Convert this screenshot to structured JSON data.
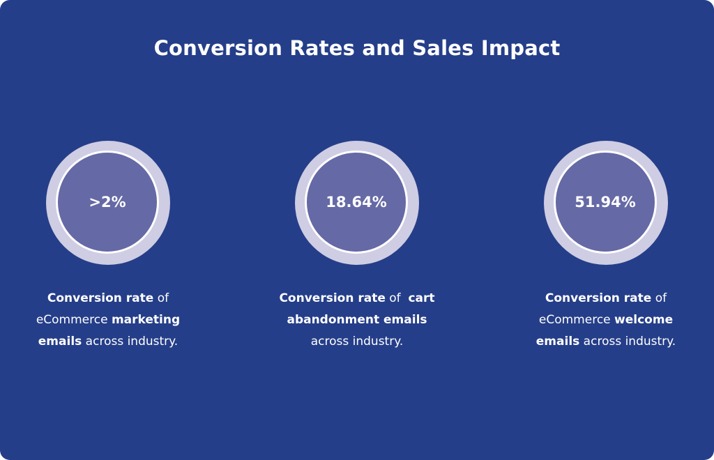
{
  "title": "Conversion Rates and Sales Impact",
  "colors": {
    "background": "#253e89",
    "ring_outer": "#cfcde3",
    "ring_inner": "#6569a5",
    "text": "#ffffff"
  },
  "stats": [
    {
      "value": ">2%",
      "lines": [
        {
          "bold": "Conversion rate",
          "rest": " of"
        },
        {
          "pre": "eCommerce ",
          "bold": "marketing"
        },
        {
          "bold": "emails",
          "rest": " across industry."
        }
      ]
    },
    {
      "value": "18.64%",
      "lines": [
        {
          "bold": "Conversion rate",
          "rest": " of  ",
          "bold2": "cart"
        },
        {
          "bold": "abandonment emails"
        },
        {
          "rest": "across industry."
        }
      ]
    },
    {
      "value": "51.94%",
      "lines": [
        {
          "bold": "Conversion rate",
          "rest": " of"
        },
        {
          "pre": "eCommerce ",
          "bold": "welcome"
        },
        {
          "bold": "emails",
          "rest": " across industry."
        }
      ]
    }
  ]
}
